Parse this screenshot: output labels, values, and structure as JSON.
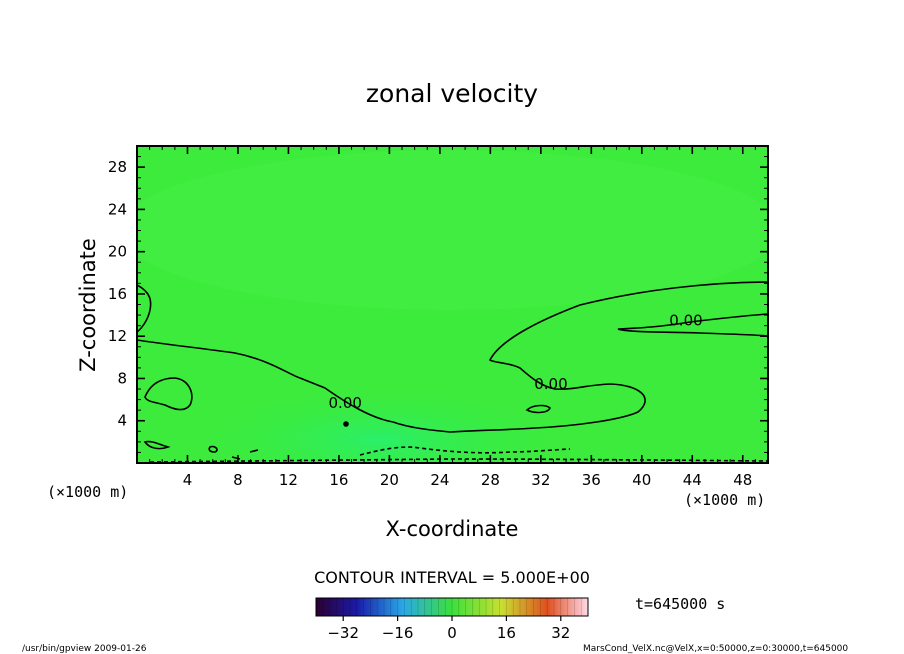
{
  "chart_data": {
    "type": "heatmap",
    "title": "zonal velocity",
    "xlabel": "X-coordinate",
    "ylabel": "Z-coordinate",
    "x_unit_left": "(×1000 m)",
    "x_unit_right": "(×1000 m)",
    "y_unit": "(×1000 m)",
    "xlim": [
      0,
      50
    ],
    "ylim": [
      0,
      30
    ],
    "xticks": [
      4,
      8,
      12,
      16,
      20,
      24,
      28,
      32,
      36,
      40,
      44,
      48
    ],
    "yticks": [
      4,
      8,
      12,
      16,
      20,
      24,
      28
    ],
    "background_color": "#3ceb3c",
    "contour_interval_text": "CONTOUR INTERVAL = 5.000E+00",
    "time_text": "t=645000 s",
    "colorbar": {
      "range": [
        -40,
        40
      ],
      "ticks": [
        -32,
        -16,
        0,
        16,
        32
      ],
      "tick_labels": [
        "−32",
        "−16",
        "0",
        "16",
        "32"
      ]
    },
    "contour_labels": [
      {
        "text": "0.00",
        "x": 16.5,
        "z": 5.2
      },
      {
        "text": "0.00",
        "x": 32.8,
        "z": 7.0
      },
      {
        "text": "0.00",
        "x": 43.5,
        "z": 13.0
      }
    ]
  },
  "footer": {
    "left": "/usr/bin/gpview   2009-01-26",
    "right": "MarsCond_VelX.nc@VelX,x=0:50000,z=0:30000,t=645000"
  }
}
